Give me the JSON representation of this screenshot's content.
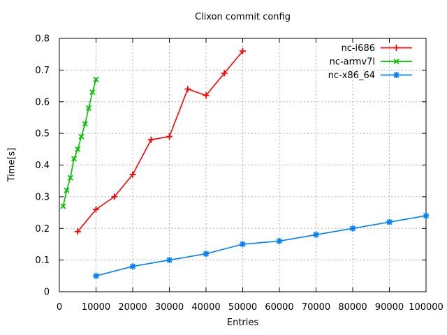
{
  "chart_data": {
    "type": "line",
    "title": "Clixon commit config",
    "xlabel": "Entries",
    "ylabel": "Time[s]",
    "xlim": [
      0,
      100000
    ],
    "ylim": [
      0,
      0.8
    ],
    "grid": true,
    "legend_position": "top-right-inside",
    "x_ticks": [
      0,
      10000,
      20000,
      30000,
      40000,
      50000,
      60000,
      70000,
      80000,
      90000,
      100000
    ],
    "x_tick_labels": [
      "0",
      "10000",
      "20000",
      "30000",
      "40000",
      "50000",
      "60000",
      "70000",
      "80000",
      "90000",
      "100000"
    ],
    "y_ticks": [
      0,
      0.1,
      0.2,
      0.3,
      0.4,
      0.5,
      0.6,
      0.7,
      0.8
    ],
    "y_tick_labels": [
      "0",
      "0.1",
      "0.2",
      "0.3",
      "0.4",
      "0.5",
      "0.6",
      "0.7",
      "0.8"
    ],
    "grid_color": "#b0b0b0",
    "axis_color": "#000000",
    "background_color": "#ffffff",
    "series": [
      {
        "name": "nc-i686",
        "color": "#ff0000",
        "marker": "plus",
        "x": [
          5000,
          10000,
          15000,
          20000,
          25000,
          30000,
          35000,
          40000,
          45000,
          50000
        ],
        "y": [
          0.19,
          0.26,
          0.3,
          0.37,
          0.48,
          0.49,
          0.64,
          0.62,
          0.69,
          0.76
        ]
      },
      {
        "name": "nc-armv7l",
        "color": "#00c000",
        "marker": "cross",
        "x": [
          1000,
          2000,
          3000,
          4000,
          5000,
          6000,
          7000,
          8000,
          9000,
          10000
        ],
        "y": [
          0.27,
          0.32,
          0.36,
          0.42,
          0.45,
          0.49,
          0.53,
          0.58,
          0.63,
          0.67
        ]
      },
      {
        "name": "nc-x86_64",
        "color": "#0080ff",
        "marker": "asterisk",
        "x": [
          10000,
          20000,
          30000,
          40000,
          50000,
          60000,
          70000,
          80000,
          90000,
          100000
        ],
        "y": [
          0.05,
          0.08,
          0.1,
          0.12,
          0.15,
          0.16,
          0.18,
          0.2,
          0.22,
          0.24
        ]
      }
    ]
  }
}
